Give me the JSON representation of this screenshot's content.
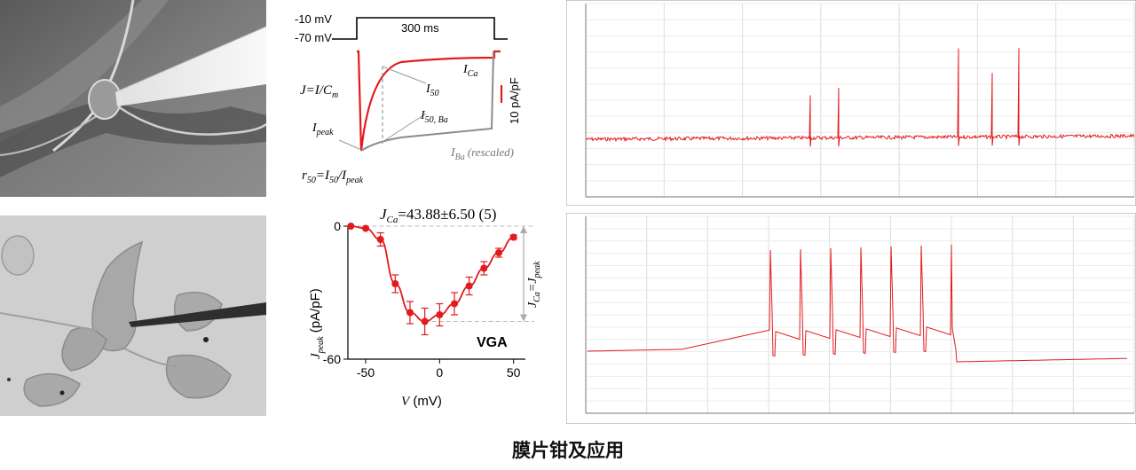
{
  "caption": "膜片钳及应用",
  "current_panel": {
    "voltage_high": "-10 mV",
    "voltage_low": "-70 mV",
    "duration": "300 ms",
    "formula_j": "J=I/C",
    "formula_j_sub": "m",
    "label_ica": "I",
    "label_ica_sub": "Ca",
    "label_i50": "I",
    "label_i50_sub": "50",
    "label_i50ba": "I",
    "label_i50ba_sub": "50, Ba",
    "label_ipeak": "I",
    "label_ipeak_sub": "peak",
    "label_iba": "I",
    "label_iba_sub": "Ba",
    "label_iba_note": "(rescaled)",
    "scale_bar": "10 pA/pF",
    "ratio_r": "r",
    "ratio_sub1": "50",
    "ratio_eq": "=I",
    "ratio_sub2": "50",
    "ratio_slash": "/I",
    "ratio_sub3": "peak"
  },
  "iv_panel": {
    "title_j": "J",
    "title_sub": "Ca",
    "title_value": "=43.88±6.50 (5)",
    "ylabel_j": "J",
    "ylabel_sub": "peak",
    "ylabel_unit": " (pA/pF)",
    "xlabel_v": "V",
    "xlabel_unit": " (mV)",
    "side_label_j": "J",
    "side_label_sub1": "Ca",
    "side_label_eq": "=J",
    "side_label_sub2": "peak",
    "tag": "VGA",
    "colors": {
      "data": "#e31a1c",
      "dashed": "#bbbbbb"
    }
  },
  "chart_data": {
    "type": "scatter",
    "x": [
      -60,
      -50,
      -40,
      -30,
      -20,
      -10,
      0,
      10,
      20,
      30,
      40,
      50
    ],
    "y": [
      0,
      -1,
      -6,
      -26,
      -39,
      -43,
      -40,
      -35,
      -27,
      -19,
      -12,
      -5
    ],
    "error": [
      0,
      0,
      3,
      4,
      5,
      6,
      5,
      5,
      4,
      3,
      2,
      1
    ],
    "xlim": [
      -62,
      58
    ],
    "ylim": [
      -60,
      0
    ],
    "xticks": [
      -50,
      0,
      50
    ],
    "yticks": [
      0,
      -60
    ]
  }
}
